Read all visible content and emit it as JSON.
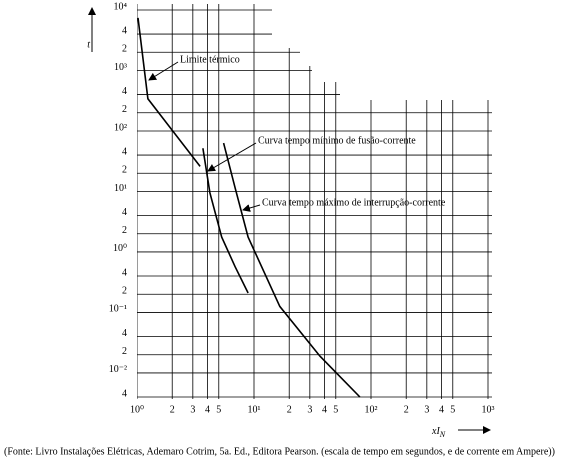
{
  "chart_data": {
    "type": "line",
    "y_label": "t",
    "x_label": "xI",
    "x_label_sub": "N",
    "caption": "(Fonte: Livro Instalações Elétricas, Ademaro Cotrim, 5a. Ed., Editora Pearson. (escala de tempo em segundos, e de corrente em Ampere))",
    "log_x": true,
    "log_y": true,
    "grid": true,
    "xlim": [
      1,
      1000
    ],
    "ylim": [
      0.004,
      10000
    ],
    "xticks": [
      {
        "value": 1,
        "label": "10⁰"
      },
      2,
      3,
      4,
      5,
      {
        "value": 10,
        "label": "10¹"
      },
      {
        "value": 20,
        "label": "2"
      },
      {
        "value": 30,
        "label": "3"
      },
      {
        "value": 40,
        "label": "4"
      },
      {
        "value": 50,
        "label": "5"
      },
      {
        "value": 100,
        "label": "10²"
      },
      {
        "value": 200,
        "label": "2"
      },
      {
        "value": 300,
        "label": "3"
      },
      {
        "value": 400,
        "label": "4"
      },
      {
        "value": 500,
        "label": "5"
      },
      {
        "value": 1000,
        "label": "10³"
      }
    ],
    "yticks": [
      {
        "value": 10000,
        "label": "10⁴"
      },
      {
        "value": 4000,
        "label": "4"
      },
      {
        "value": 2000,
        "label": "2"
      },
      {
        "value": 1000,
        "label": "10³"
      },
      {
        "value": 400,
        "label": "4"
      },
      {
        "value": 200,
        "label": "2"
      },
      {
        "value": 100,
        "label": "10²"
      },
      {
        "value": 40,
        "label": "4"
      },
      {
        "value": 20,
        "label": "2"
      },
      {
        "value": 10,
        "label": "10¹"
      },
      4,
      2,
      {
        "value": 1,
        "label": "10⁰"
      },
      {
        "value": 0.4,
        "label": "4"
      },
      {
        "value": 0.2,
        "label": "2"
      },
      {
        "value": 0.1,
        "label": "10⁻¹"
      },
      {
        "value": 0.04,
        "label": "4"
      },
      {
        "value": 0.02,
        "label": "2"
      },
      {
        "value": 0.01,
        "label": "10⁻²"
      },
      {
        "value": 0.004,
        "label": "4"
      }
    ],
    "series": [
      {
        "name": "Limite térmico",
        "color": "#000000",
        "x": [
          1.02,
          1.24,
          3.46
        ],
        "values": [
          7400,
          340,
          26
        ]
      },
      {
        "name": "Curva tempo mínimo de fusão-corrente",
        "color": "#000000",
        "x": [
          3.66,
          4.2,
          5.3,
          6.9,
          8.9
        ],
        "values": [
          52,
          9.5,
          1.76,
          0.57,
          0.21
        ]
      },
      {
        "name": "Curva tempo máximo de interrupção-corrente",
        "color": "#000000",
        "x": [
          5.5,
          6.9,
          8.9,
          16.6,
          36.6,
          80.3
        ],
        "values": [
          63,
          11.5,
          1.76,
          0.126,
          0.019,
          0.004
        ]
      }
    ]
  }
}
